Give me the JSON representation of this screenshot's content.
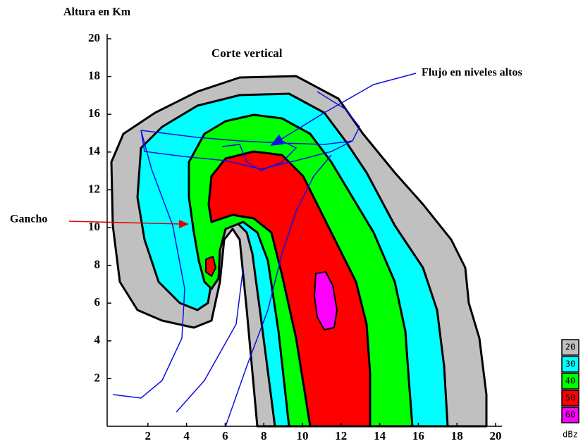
{
  "title": "Corte vertical",
  "y_axis_label": "Altura en Km",
  "annotations": {
    "flow": "Flujo en niveles altos",
    "hook": "Gancho"
  },
  "axes": {
    "x_ticks": [
      2,
      4,
      6,
      8,
      10,
      12,
      14,
      16,
      18,
      20
    ],
    "y_ticks": [
      2,
      4,
      6,
      8,
      10,
      12,
      14,
      16,
      18,
      20
    ],
    "xlim": [
      0,
      20
    ],
    "ylim": [
      0,
      20
    ]
  },
  "legend": {
    "items": [
      {
        "label": "20",
        "color": "#c0c0c0"
      },
      {
        "label": "30",
        "color": "#00ffff"
      },
      {
        "label": "40",
        "color": "#00ff00"
      },
      {
        "label": "50",
        "color": "#ff0000"
      },
      {
        "label": "60",
        "color": "#ff00ff"
      }
    ],
    "unit": "dBz"
  }
}
